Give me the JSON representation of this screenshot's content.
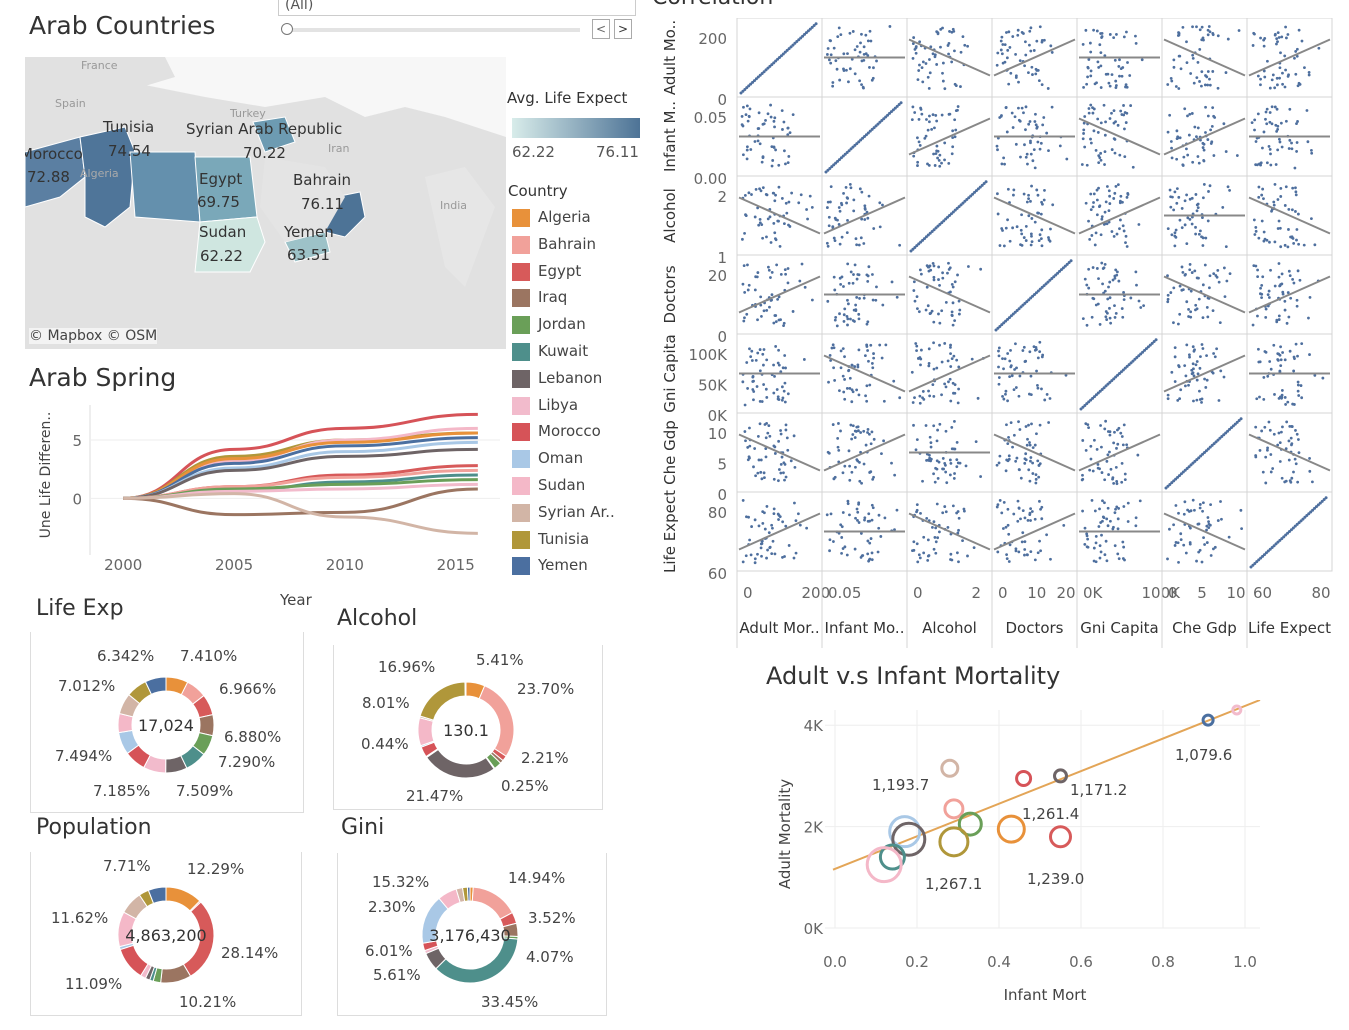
{
  "filter": {
    "selected": "(All)"
  },
  "map": {
    "title": "Arab Countries",
    "attribution": "© Mapbox  © OSM",
    "legend_title": "Avg. Life Expect",
    "legend_min": "62.22",
    "legend_max": "76.11",
    "colors": {
      "low": "#d8ecea",
      "high": "#4d7396"
    },
    "background_labels": [
      "France",
      "Spain",
      "Turkey",
      "Iran",
      "Algeria",
      "India"
    ],
    "countries": [
      {
        "name": "Tunisia",
        "value": "74.54"
      },
      {
        "name": "Syrian Arab Republic",
        "value": "70.22"
      },
      {
        "name": "Morocco",
        "value": "72.88"
      },
      {
        "name": "Egypt",
        "value": "69.75"
      },
      {
        "name": "Bahrain",
        "value": "76.11"
      },
      {
        "name": "Sudan",
        "value": "62.22"
      },
      {
        "name": "Yemen",
        "value": "63.51"
      }
    ]
  },
  "country_legend": {
    "title": "Country",
    "items": [
      {
        "name": "Algeria",
        "color": "#e8913a"
      },
      {
        "name": "Bahrain",
        "color": "#f1a19a"
      },
      {
        "name": "Egypt",
        "color": "#d75a5a"
      },
      {
        "name": "Iraq",
        "color": "#9b7561"
      },
      {
        "name": "Jordan",
        "color": "#6a9f58"
      },
      {
        "name": "Kuwait",
        "color": "#4e8f8b"
      },
      {
        "name": "Lebanon",
        "color": "#6e6466"
      },
      {
        "name": "Libya",
        "color": "#f2bbcc"
      },
      {
        "name": "Morocco",
        "color": "#d65358"
      },
      {
        "name": "Oman",
        "color": "#a9c8e6"
      },
      {
        "name": "Sudan",
        "color": "#f4b8c8"
      },
      {
        "name": "Syrian Ar..",
        "color": "#d2b5a6"
      },
      {
        "name": "Tunisia",
        "color": "#b0973a"
      },
      {
        "name": "Yemen",
        "color": "#4b6fa0"
      }
    ]
  },
  "correlation": {
    "title": "Correlation",
    "variables": [
      "Adult Mor..",
      "Infant Mo..",
      "Alcohol",
      "Doctors",
      "Gni Capita",
      "Che Gdp",
      "Life Expect"
    ],
    "row_labels": [
      "Adult Mo..",
      "Infant M..",
      "Alcohol",
      "Doctors",
      "Gni Capita",
      "Che Gdp",
      "Life Expect"
    ],
    "row_ticks": [
      [
        "200",
        "0"
      ],
      [
        "0.05",
        "0.00"
      ],
      [
        "2",
        "1"
      ],
      [
        "20",
        "0"
      ],
      [
        "100K",
        "50K",
        "0K"
      ],
      [
        "10",
        "5",
        "0"
      ],
      [
        "80",
        "60"
      ]
    ],
    "col_ticks": [
      [
        "0",
        "200"
      ],
      [
        "0.05"
      ],
      [
        "0",
        "2"
      ],
      [
        "0",
        "10",
        "20"
      ],
      [
        "0K",
        "100K"
      ],
      [
        "0",
        "5",
        "10"
      ],
      [
        "60",
        "80"
      ]
    ],
    "point_color": "#4e6f9e"
  },
  "arab_spring": {
    "title": "Arab Spring",
    "ylabel": "Une Life Differen..",
    "xlabel": "Year",
    "yticks": [
      "5",
      "0"
    ],
    "xticks": [
      "2000",
      "2005",
      "2010",
      "2015"
    ],
    "chart_data": {
      "type": "line",
      "x": [
        2000,
        2005,
        2010,
        2016
      ],
      "series": [
        {
          "name": "Morocco",
          "values": [
            0,
            4.2,
            6.0,
            7.2
          ]
        },
        {
          "name": "Tunisia",
          "values": [
            0,
            3.6,
            5.0,
            5.6
          ]
        },
        {
          "name": "Sudan",
          "values": [
            0,
            3.2,
            5.0,
            6.0
          ]
        },
        {
          "name": "Algeria",
          "values": [
            0,
            3.4,
            4.8,
            5.6
          ]
        },
        {
          "name": "Yemen",
          "values": [
            0,
            3.0,
            4.5,
            5.2
          ]
        },
        {
          "name": "Oman",
          "values": [
            0,
            2.6,
            4.0,
            4.8
          ]
        },
        {
          "name": "Lebanon",
          "values": [
            0,
            2.4,
            3.6,
            4.2
          ]
        },
        {
          "name": "Egypt",
          "values": [
            0,
            1.0,
            2.0,
            2.8
          ]
        },
        {
          "name": "Bahrain",
          "values": [
            0,
            1.0,
            1.8,
            2.4
          ]
        },
        {
          "name": "Kuwait",
          "values": [
            0,
            0.6,
            1.4,
            2.0
          ]
        },
        {
          "name": "Jordan",
          "values": [
            0,
            0.8,
            1.2,
            1.6
          ]
        },
        {
          "name": "Libya",
          "values": [
            0,
            0.6,
            0.8,
            1.2
          ]
        },
        {
          "name": "Iraq",
          "values": [
            0,
            -1.4,
            -1.2,
            0.8
          ]
        },
        {
          "name": "Syrian Ar..",
          "values": [
            0,
            0.4,
            -1.6,
            -3.0
          ]
        }
      ]
    }
  },
  "donuts": [
    {
      "title": "Life Exp",
      "center": "17,024",
      "labels": [
        "6.342%",
        "7.410%",
        "7.012%",
        "6.966%",
        "6.880%",
        "7.494%",
        "7.290%",
        "7.185%",
        "7.509%"
      ],
      "chart_data": {
        "type": "pie",
        "categories": [
          "Algeria",
          "Bahrain",
          "Egypt",
          "Iraq",
          "Jordan",
          "Kuwait",
          "Lebanon",
          "Libya",
          "Morocco",
          "Oman",
          "Sudan",
          "Syrian Ar..",
          "Tunisia",
          "Yemen"
        ],
        "values": [
          7.41,
          6.97,
          7.0,
          7.0,
          6.88,
          7.29,
          7.2,
          7.51,
          7.18,
          7.49,
          6.34,
          7.0,
          7.01,
          7.0
        ]
      }
    },
    {
      "title": "Alcohol",
      "center": "130.1",
      "labels": [
        "16.96%",
        "5.41%",
        "23.70%",
        "8.01%",
        "0.44%",
        "2.21%",
        "0.25%",
        "21.47%"
      ],
      "chart_data": {
        "type": "pie",
        "categories": [
          "Algeria",
          "Bahrain",
          "Egypt",
          "Iraq",
          "Jordan",
          "Kuwait",
          "Lebanon",
          "Libya",
          "Morocco",
          "Oman",
          "Sudan",
          "Syrian Ar..",
          "Tunisia",
          "Yemen"
        ],
        "values": [
          5.41,
          23.7,
          1.5,
          1.0,
          2.21,
          0.25,
          21.47,
          0.3,
          3.0,
          0.44,
          8.01,
          0.5,
          16.96,
          0.3
        ]
      }
    },
    {
      "title": "Population",
      "center": "4,863,200",
      "labels": [
        "7.71%",
        "12.29%",
        "11.62%",
        "28.14%",
        "11.09%",
        "10.21%"
      ],
      "chart_data": {
        "type": "pie",
        "categories": [
          "Algeria",
          "Bahrain",
          "Egypt",
          "Iraq",
          "Jordan",
          "Kuwait",
          "Lebanon",
          "Libya",
          "Morocco",
          "Oman",
          "Sudan",
          "Syrian Ar..",
          "Tunisia",
          "Yemen"
        ],
        "values": [
          12.29,
          0.5,
          28.14,
          10.21,
          2.5,
          1.2,
          1.5,
          1.8,
          11.09,
          1.0,
          11.62,
          7.71,
          3.3,
          5.9
        ]
      }
    },
    {
      "title": "Gini",
      "center": "3,176,430",
      "labels": [
        "15.32%",
        "14.94%",
        "2.30%",
        "3.52%",
        "6.01%",
        "4.07%",
        "5.61%",
        "33.45%"
      ],
      "chart_data": {
        "type": "pie",
        "categories": [
          "Algeria",
          "Bahrain",
          "Egypt",
          "Iraq",
          "Jordan",
          "Kuwait",
          "Lebanon",
          "Libya",
          "Morocco",
          "Oman",
          "Sudan",
          "Syrian Ar..",
          "Tunisia",
          "Yemen"
        ],
        "values": [
          1.0,
          14.94,
          3.52,
          4.07,
          0.8,
          33.45,
          5.61,
          1.0,
          2.3,
          15.32,
          6.01,
          2.0,
          1.5,
          0.8
        ]
      }
    }
  ],
  "adult_infant": {
    "title": "Adult v.s Infant Mortality",
    "xlabel": "Infant Mort",
    "ylabel": "Adult Mortality",
    "xticks": [
      "0.0",
      "0.2",
      "0.4",
      "0.6",
      "0.8",
      "1.0"
    ],
    "yticks": [
      "4K",
      "2K",
      "0K"
    ],
    "chart_data": {
      "type": "scatter",
      "xlim": [
        0,
        1.0
      ],
      "ylim": [
        0,
        4300
      ],
      "trend": [
        [
          0,
          1150
        ],
        [
          1.0,
          4300
        ]
      ],
      "points": [
        {
          "country": "Libya",
          "x": 0.98,
          "y": 4300,
          "size": 4,
          "label": ""
        },
        {
          "country": "Yemen",
          "x": 0.91,
          "y": 4100,
          "size": 5,
          "label": "1,079.6"
        },
        {
          "country": "Syrian Ar..",
          "x": 0.28,
          "y": 3150,
          "size": 8,
          "label": "1,193.7"
        },
        {
          "country": "Lebanon",
          "x": 0.55,
          "y": 3000,
          "size": 6,
          "label": "1,171.2"
        },
        {
          "country": "Morocco",
          "x": 0.46,
          "y": 2950,
          "size": 7,
          "label": ""
        },
        {
          "country": "Bahrain",
          "x": 0.29,
          "y": 2350,
          "size": 9,
          "label": "1,261.4"
        },
        {
          "country": "Jordan",
          "x": 0.33,
          "y": 2050,
          "size": 11,
          "label": ""
        },
        {
          "country": "Oman",
          "x": 0.17,
          "y": 1900,
          "size": 15,
          "label": ""
        },
        {
          "country": "Algeria",
          "x": 0.43,
          "y": 1950,
          "size": 13,
          "label": ""
        },
        {
          "country": "Egypt",
          "x": 0.55,
          "y": 1800,
          "size": 10,
          "label": "1,239.0"
        },
        {
          "country": "Lebanon",
          "x": 0.18,
          "y": 1750,
          "size": 16,
          "label": ""
        },
        {
          "country": "Tunisia",
          "x": 0.29,
          "y": 1700,
          "size": 14,
          "label": "1,267.1"
        },
        {
          "country": "Kuwait",
          "x": 0.14,
          "y": 1400,
          "size": 12,
          "label": ""
        },
        {
          "country": "Sudan",
          "x": 0.12,
          "y": 1250,
          "size": 17,
          "label": ""
        }
      ]
    }
  }
}
